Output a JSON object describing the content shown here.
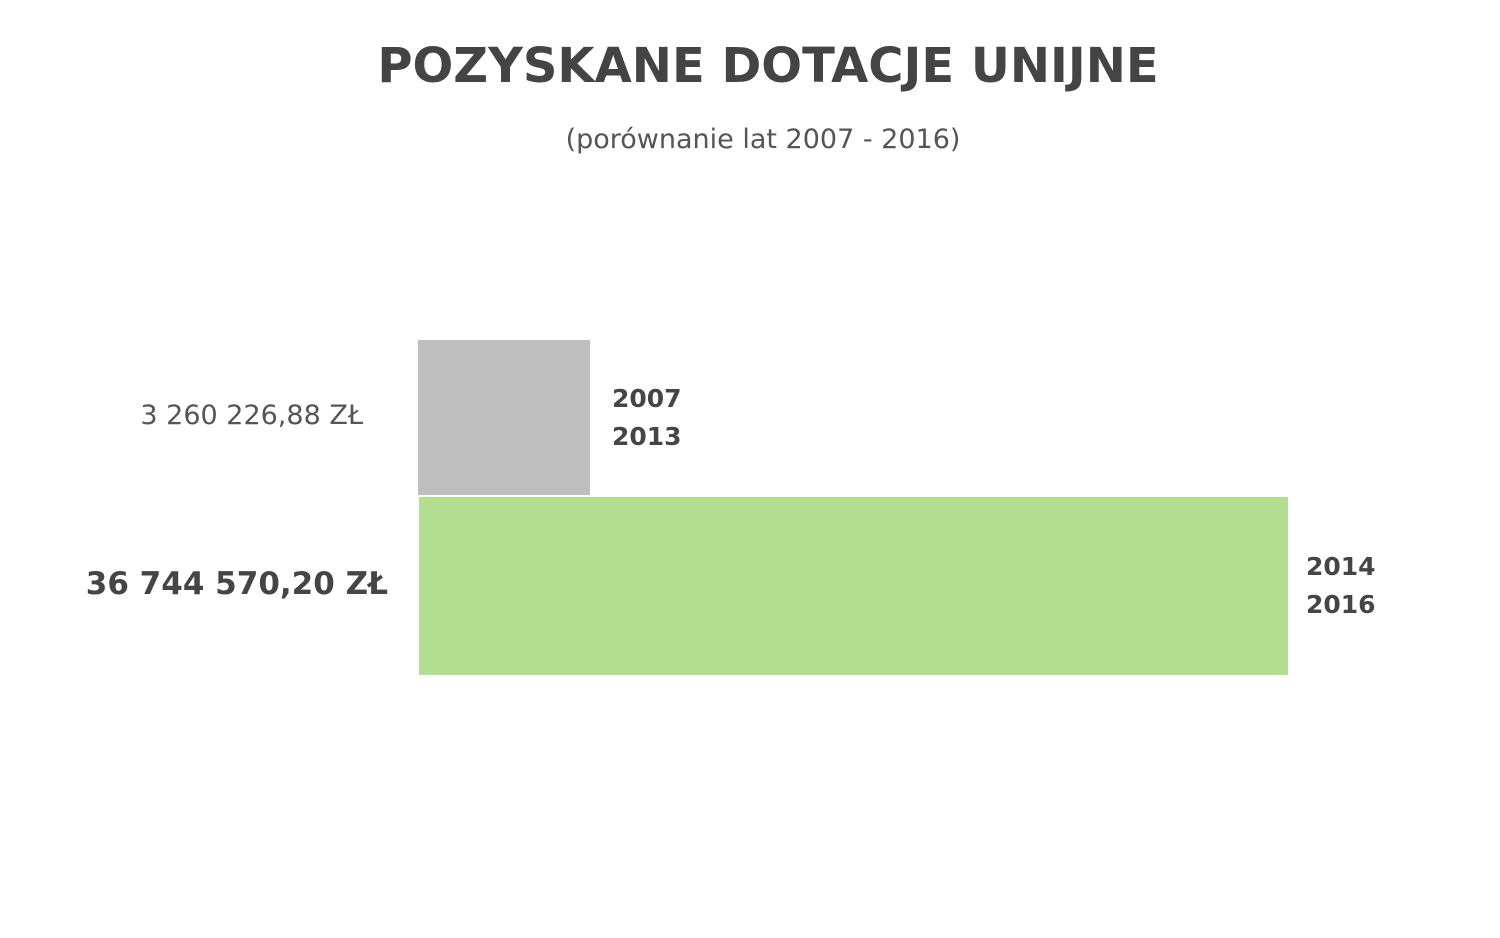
{
  "title": "POZYSKANE DOTACJE UNIJNE",
  "subtitle": "(porównanie lat 2007 - 2016)",
  "bars": [
    {
      "value_label": "3 260 226,88 ZŁ",
      "period_start": "2007",
      "period_end": "2013",
      "color": "#bfbfbf"
    },
    {
      "value_label": "36 744 570,20 ZŁ",
      "period_start": "2014",
      "period_end": "2016",
      "color": "#b3dd8f"
    }
  ],
  "chart_data": {
    "type": "bar",
    "orientation": "horizontal",
    "title": "POZYSKANE DOTACJE UNIJNE",
    "subtitle": "(porównanie lat 2007 - 2016)",
    "categories": [
      "2007-2013",
      "2014-2016"
    ],
    "values": [
      3260226.88,
      36744570.2
    ],
    "value_labels": [
      "3 260 226,88 ZŁ",
      "36 744 570,20 ZŁ"
    ],
    "colors": [
      "#bfbfbf",
      "#b3dd8f"
    ],
    "xlabel": "",
    "ylabel": "",
    "grid": false,
    "legend": false,
    "unit": "ZŁ"
  }
}
